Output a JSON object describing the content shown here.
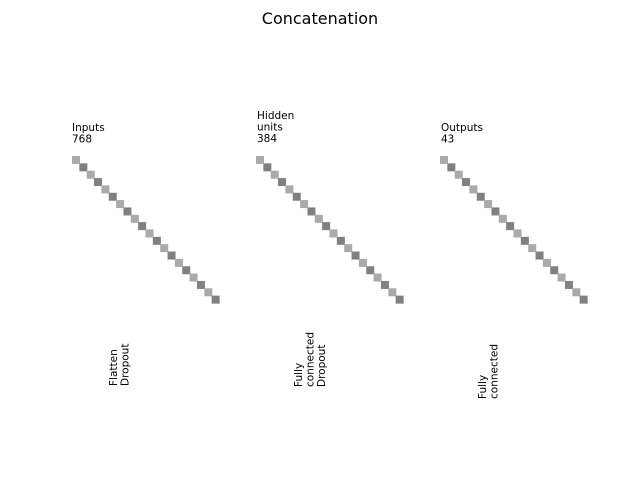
{
  "title": "Concatenation",
  "colors": {
    "light_square": "#aaaaaa",
    "dark_square": "#808080",
    "text": "#000000",
    "background": "#ffffff"
  },
  "layers": [
    {
      "label_lines": [
        "Inputs",
        "768"
      ]
    },
    {
      "label_lines": [
        "Hidden",
        "units",
        "384"
      ]
    },
    {
      "label_lines": [
        "Outputs",
        "43"
      ]
    }
  ],
  "operations": [
    {
      "label_lines": [
        "Flatten",
        "Dropout"
      ]
    },
    {
      "label_lines": [
        "Fully",
        "connected",
        "Dropout"
      ]
    },
    {
      "label_lines": [
        "Fully",
        "connected"
      ]
    }
  ]
}
